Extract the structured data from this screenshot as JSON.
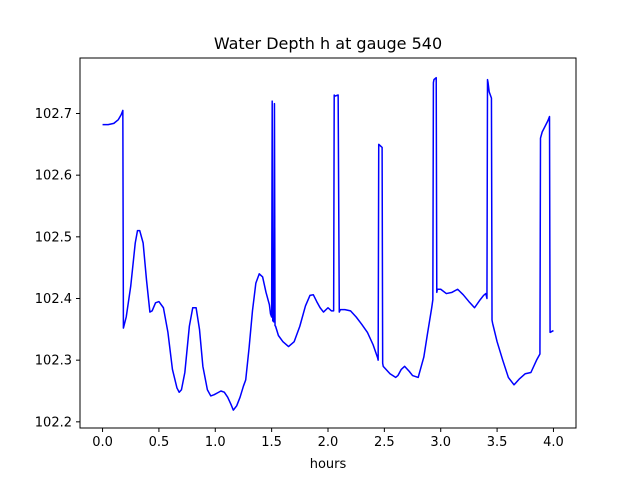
{
  "chart_data": {
    "type": "line",
    "title": "Water Depth h at gauge 540",
    "xlabel": "hours",
    "ylabel": "",
    "xlim": [
      -0.2,
      4.2
    ],
    "ylim": [
      102.19,
      102.79
    ],
    "xticks": [
      0.0,
      0.5,
      1.0,
      1.5,
      2.0,
      2.5,
      3.0,
      3.5,
      4.0
    ],
    "xtick_labels": [
      "0.0",
      "0.5",
      "1.0",
      "1.5",
      "2.0",
      "2.5",
      "3.0",
      "3.5",
      "4.0"
    ],
    "yticks": [
      102.2,
      102.3,
      102.4,
      102.5,
      102.6,
      102.7
    ],
    "ytick_labels": [
      "102.2",
      "102.3",
      "102.4",
      "102.5",
      "102.6",
      "102.7"
    ],
    "grid": false,
    "legend": false,
    "series": [
      {
        "color": "#0000ff",
        "x": [
          0.0,
          0.05,
          0.1,
          0.14,
          0.165,
          0.18,
          0.185,
          0.21,
          0.25,
          0.29,
          0.31,
          0.33,
          0.36,
          0.39,
          0.42,
          0.44,
          0.47,
          0.5,
          0.54,
          0.58,
          0.62,
          0.66,
          0.68,
          0.7,
          0.73,
          0.77,
          0.8,
          0.83,
          0.86,
          0.89,
          0.93,
          0.96,
          0.99,
          1.02,
          1.05,
          1.08,
          1.11,
          1.14,
          1.16,
          1.19,
          1.22,
          1.25,
          1.27,
          1.3,
          1.33,
          1.36,
          1.39,
          1.42,
          1.45,
          1.48,
          1.49,
          1.5,
          1.505,
          1.51,
          1.52,
          1.525,
          1.53,
          1.535,
          1.56,
          1.6,
          1.65,
          1.7,
          1.75,
          1.8,
          1.84,
          1.87,
          1.9,
          1.93,
          1.96,
          2.0,
          2.03,
          2.05,
          2.055,
          2.06,
          2.09,
          2.1,
          2.11,
          2.15,
          2.2,
          2.25,
          2.3,
          2.35,
          2.4,
          2.44,
          2.445,
          2.45,
          2.48,
          2.485,
          2.49,
          2.55,
          2.6,
          2.62,
          2.65,
          2.68,
          2.72,
          2.75,
          2.8,
          2.85,
          2.88,
          2.92,
          2.93,
          2.935,
          2.94,
          2.96,
          2.965,
          2.97,
          3.0,
          3.05,
          3.1,
          3.15,
          3.2,
          3.25,
          3.3,
          3.35,
          3.38,
          3.4,
          3.41,
          3.415,
          3.42,
          3.43,
          3.45,
          3.455,
          3.46,
          3.5,
          3.55,
          3.6,
          3.65,
          3.7,
          3.75,
          3.8,
          3.85,
          3.88,
          3.885,
          3.9,
          3.95,
          3.965,
          3.97,
          4.0
        ],
        "y": [
          102.682,
          102.682,
          102.684,
          102.69,
          102.698,
          102.705,
          102.352,
          102.37,
          102.42,
          102.49,
          102.51,
          102.51,
          102.49,
          102.43,
          102.378,
          102.38,
          102.393,
          102.395,
          102.385,
          102.345,
          102.285,
          102.255,
          102.248,
          102.252,
          102.28,
          102.355,
          102.385,
          102.385,
          102.35,
          102.29,
          102.252,
          102.242,
          102.244,
          102.247,
          102.25,
          102.248,
          102.24,
          102.228,
          102.219,
          102.226,
          102.24,
          102.258,
          102.268,
          102.32,
          102.38,
          102.425,
          102.44,
          102.435,
          102.41,
          102.39,
          102.375,
          102.37,
          102.72,
          102.364,
          102.362,
          102.716,
          102.356,
          102.355,
          102.34,
          102.33,
          102.322,
          102.33,
          102.355,
          102.388,
          102.405,
          102.406,
          102.395,
          102.385,
          102.378,
          102.385,
          102.38,
          102.38,
          102.73,
          102.728,
          102.73,
          102.378,
          102.382,
          102.382,
          102.38,
          102.37,
          102.358,
          102.345,
          102.325,
          102.304,
          102.3,
          102.65,
          102.645,
          102.295,
          102.29,
          102.278,
          102.272,
          102.275,
          102.285,
          102.29,
          102.282,
          102.275,
          102.272,
          102.305,
          102.34,
          102.385,
          102.398,
          102.75,
          102.755,
          102.758,
          102.41,
          102.415,
          102.415,
          102.408,
          102.41,
          102.415,
          102.406,
          102.395,
          102.385,
          102.398,
          102.405,
          102.408,
          102.4,
          102.755,
          102.75,
          102.735,
          102.725,
          102.365,
          102.36,
          102.33,
          102.3,
          102.272,
          102.26,
          102.27,
          102.278,
          102.28,
          102.3,
          102.31,
          102.66,
          102.67,
          102.688,
          102.695,
          102.345,
          102.348
        ]
      }
    ]
  }
}
